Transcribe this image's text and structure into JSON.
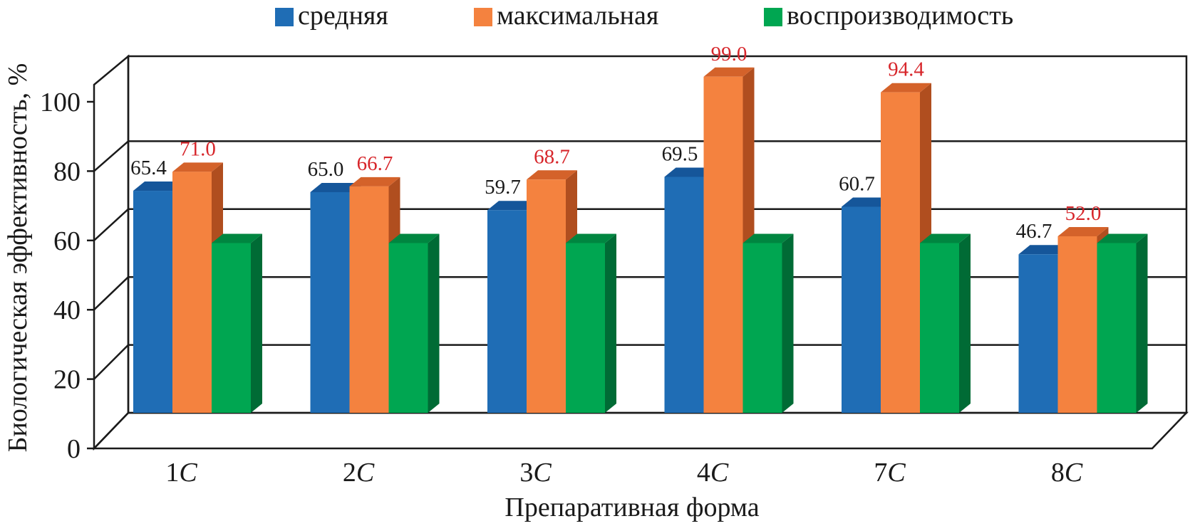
{
  "chart_data": {
    "type": "bar",
    "categories": [
      "1C",
      "2C",
      "3C",
      "4C",
      "7C",
      "8C"
    ],
    "series": [
      {
        "name": "средняя",
        "color": "#1f6db5",
        "top_color": "#15569a",
        "side_color": "#17578f",
        "label_color": "#1a1a1a",
        "labeled": true,
        "values": [
          65.4,
          65.0,
          59.7,
          69.5,
          60.7,
          46.7
        ]
      },
      {
        "name": "максимальная",
        "color": "#f4823f",
        "top_color": "#d4622a",
        "side_color": "#b04e1f",
        "label_color": "#d7262b",
        "labeled": true,
        "values": [
          71.0,
          66.7,
          68.7,
          99.0,
          94.4,
          52.0
        ]
      },
      {
        "name": "воспроизводимость",
        "color": "#00a651",
        "top_color": "#008640",
        "side_color": "#006b35",
        "label_color": "#1a1a1a",
        "labeled": false,
        "values": [
          50.0,
          50.0,
          50.0,
          50.0,
          50.0,
          50.0
        ]
      }
    ],
    "xlabel": "Препаративная форма",
    "ylabel": "Биологическая эффективность, %",
    "ylim": [
      0,
      100
    ],
    "yticks": [
      0,
      20,
      40,
      60,
      80,
      100
    ],
    "grid": true,
    "legend": "top"
  }
}
